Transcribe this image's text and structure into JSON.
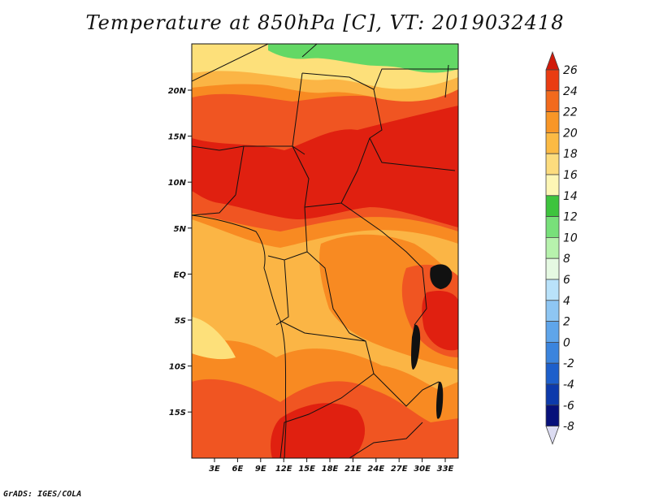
{
  "title": "Temperature at 850hPa [C], VT: 2019032418",
  "credit": "GrADS: IGES/COLA",
  "map": {
    "x_ticks": [
      "3E",
      "6E",
      "9E",
      "12E",
      "15E",
      "18E",
      "21E",
      "24E",
      "27E",
      "30E",
      "33E"
    ],
    "y_ticks": [
      "20N",
      "15N",
      "10N",
      "5N",
      "EQ",
      "5S",
      "10S",
      "15S"
    ],
    "fill_colors": {
      "t26": "#e02010",
      "t24": "#f05522",
      "t22": "#f88a22",
      "t20": "#fbb545",
      "t18": "#fde07a",
      "t14": "#63d865",
      "lake": "#111111"
    }
  },
  "colorbar": {
    "labels": [
      "26",
      "24",
      "22",
      "20",
      "18",
      "16",
      "14",
      "12",
      "10",
      "8",
      "6",
      "4",
      "2",
      "0",
      "-2",
      "-4",
      "-6",
      "-8"
    ],
    "colors": [
      "#d11a0a",
      "#ea3c12",
      "#f26a1d",
      "#f89627",
      "#fbba44",
      "#fcdc7e",
      "#fdf6b5",
      "#3ec43e",
      "#78e07a",
      "#b7f2ad",
      "#e5f9e2",
      "#b9e2fa",
      "#8ec6f3",
      "#5fa5ea",
      "#3b84dd",
      "#1d5fcb",
      "#0d3aab",
      "#07107a",
      "#dcdcf2"
    ]
  }
}
